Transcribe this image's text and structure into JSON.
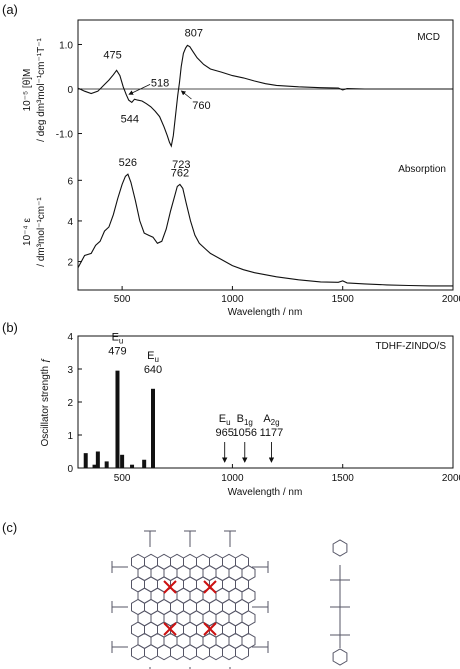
{
  "panel_labels": {
    "a": "(a)",
    "b": "(b)",
    "c": "(c)"
  },
  "chart_data": [
    {
      "type": "line",
      "panel": "(a) upper",
      "legend": "MCD",
      "ylabel_line1": "10⁻⁵ [θ]M",
      "ylabel_line2": "/ deg dm³mol⁻¹cm⁻¹T⁻¹",
      "xlim": [
        300,
        2000
      ],
      "ylim": [
        -1.55,
        1.55
      ],
      "yticks": [
        {
          "v": 1.0,
          "label": "1.0"
        },
        {
          "v": 0,
          "label": "0"
        },
        {
          "v": -1.0,
          "label": "-1.0"
        }
      ],
      "series": [
        {
          "x": [
            300,
            330,
            360,
            390,
            420,
            440,
            460,
            475,
            490,
            505,
            518,
            530,
            544,
            556,
            570,
            590,
            610,
            630,
            650,
            670,
            690,
            705,
            715,
            723,
            732,
            742,
            752,
            760,
            768,
            778,
            788,
            796,
            807,
            820,
            840,
            870,
            900,
            950,
            1000,
            1050,
            1100,
            1150,
            1200,
            1300,
            1400,
            1480,
            1500,
            1520,
            1600,
            1700,
            1800,
            1900,
            2000
          ],
          "y": [
            0.02,
            -0.05,
            -0.1,
            -0.05,
            0.1,
            0.2,
            0.32,
            0.42,
            0.3,
            0.05,
            -0.12,
            -0.25,
            -0.3,
            -0.23,
            -0.25,
            -0.27,
            -0.33,
            -0.4,
            -0.5,
            -0.62,
            -0.85,
            -1.05,
            -1.2,
            -1.28,
            -1.05,
            -0.6,
            -0.15,
            0.15,
            0.5,
            0.8,
            0.92,
            0.98,
            0.95,
            0.85,
            0.7,
            0.55,
            0.45,
            0.38,
            0.3,
            0.25,
            0.18,
            0.12,
            0.08,
            0.05,
            0.03,
            0.02,
            -0.02,
            0.01,
            0.0,
            0.0,
            0.0,
            0.0,
            0.0
          ]
        }
      ],
      "annotations": [
        {
          "text": "475",
          "x": 475,
          "y": 0.42
        },
        {
          "text": "518",
          "x": 518,
          "y": -0.12
        },
        {
          "text": "544",
          "x": 544,
          "y": -0.3
        },
        {
          "text": "723",
          "x": 723,
          "y": -1.28
        },
        {
          "text": "760",
          "x": 760,
          "y": 0.0
        },
        {
          "text": "807",
          "x": 807,
          "y": 0.95
        }
      ]
    },
    {
      "type": "line",
      "panel": "(a) lower",
      "legend": "Absorption",
      "ylabel_line1": "10⁻⁴ ε",
      "ylabel_line2": "/ dm³mol⁻¹cm⁻¹",
      "xlabel": "Wavelength / nm",
      "xlim": [
        300,
        2000
      ],
      "ylim": [
        0.6,
        7.0
      ],
      "xticks": [
        500,
        1000,
        1500,
        2000
      ],
      "yticks": [
        {
          "v": 6,
          "label": "6"
        },
        {
          "v": 4,
          "label": "4"
        },
        {
          "v": 2,
          "label": "2"
        }
      ],
      "series": [
        {
          "x": [
            300,
            330,
            360,
            380,
            400,
            420,
            440,
            460,
            480,
            500,
            515,
            526,
            540,
            560,
            580,
            600,
            620,
            640,
            660,
            680,
            700,
            720,
            740,
            750,
            762,
            775,
            790,
            810,
            830,
            850,
            880,
            900,
            950,
            1000,
            1050,
            1100,
            1200,
            1300,
            1400,
            1480,
            1500,
            1520,
            1600,
            1700,
            1800,
            1900,
            2000
          ],
          "y": [
            1.7,
            2.3,
            2.4,
            2.8,
            3.0,
            3.5,
            3.7,
            4.3,
            5.1,
            5.8,
            6.2,
            6.3,
            5.9,
            5.0,
            4.0,
            3.4,
            3.3,
            3.2,
            2.9,
            3.0,
            3.6,
            4.5,
            5.3,
            5.7,
            5.8,
            5.6,
            4.9,
            4.0,
            3.3,
            2.9,
            2.6,
            2.4,
            2.1,
            1.8,
            1.6,
            1.45,
            1.25,
            1.1,
            1.0,
            0.98,
            1.05,
            0.95,
            0.9,
            0.85,
            0.82,
            0.8,
            0.8
          ]
        }
      ],
      "annotations": [
        {
          "text": "526",
          "x": 526,
          "y": 6.3
        },
        {
          "text": "762",
          "x": 762,
          "y": 5.8
        }
      ]
    },
    {
      "type": "bar",
      "panel": "(b)",
      "legend": "TDHF-ZINDO/S",
      "ylabel": "Oscillator strength ƒ",
      "xlabel": "Wavelength / nm",
      "xlim": [
        300,
        2000
      ],
      "ylim": [
        0,
        4
      ],
      "xticks": [
        500,
        1000,
        1500,
        2000
      ],
      "yticks": [
        0,
        1,
        2,
        3,
        4
      ],
      "bars": [
        {
          "x": 335,
          "f": 0.45
        },
        {
          "x": 375,
          "f": 0.1
        },
        {
          "x": 390,
          "f": 0.5
        },
        {
          "x": 430,
          "f": 0.2
        },
        {
          "x": 479,
          "f": 2.95
        },
        {
          "x": 500,
          "f": 0.4
        },
        {
          "x": 545,
          "f": 0.1
        },
        {
          "x": 600,
          "f": 0.25
        },
        {
          "x": 640,
          "f": 2.4
        }
      ],
      "labels": [
        {
          "sym": "E",
          "sub": "u",
          "num": "479",
          "x": 479,
          "kind": "bar"
        },
        {
          "sym": "E",
          "sub": "u",
          "num": "640",
          "x": 640,
          "kind": "bar"
        },
        {
          "sym": "E",
          "sub": "u",
          "num": "965",
          "x": 965,
          "kind": "arrow"
        },
        {
          "sym": "B",
          "sub": "1g",
          "num": "1056",
          "x": 1056,
          "kind": "arrow"
        },
        {
          "sym": "A",
          "sub": "2g",
          "num": "1177",
          "x": 1177,
          "kind": "arrow"
        }
      ]
    }
  ]
}
